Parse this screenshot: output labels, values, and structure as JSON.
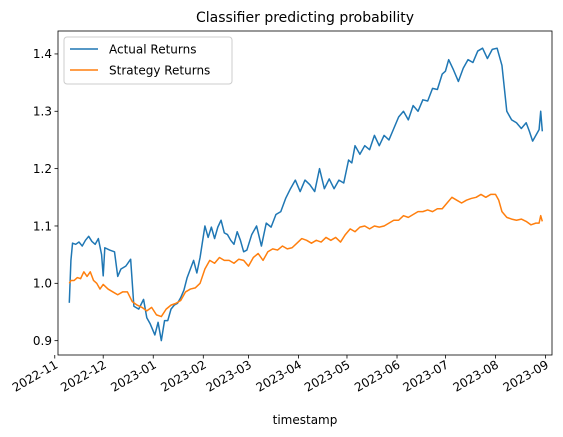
{
  "chart_data": {
    "type": "line",
    "title": "Classifier predicting probability",
    "xlabel": "timestamp",
    "ylabel": "",
    "xlim": [
      "2022-11-03",
      "2023-09-05"
    ],
    "ylim": [
      0.875,
      1.44
    ],
    "grid": false,
    "legend": "top-left",
    "xticks": [
      "2022-11",
      "2022-12",
      "2023-01",
      "2023-02",
      "2023-03",
      "2023-04",
      "2023-05",
      "2023-06",
      "2023-07",
      "2023-08",
      "2023-09"
    ],
    "yticks": [
      "0.9",
      "1.0",
      "1.1",
      "1.2",
      "1.3",
      "1.4"
    ],
    "series": [
      {
        "name": "Actual Returns",
        "color": "#1f77b4",
        "points": [
          [
            "2022-11-10",
            0.966
          ],
          [
            "2022-11-11",
            1.04
          ],
          [
            "2022-11-12",
            1.07
          ],
          [
            "2022-11-14",
            1.068
          ],
          [
            "2022-11-16",
            1.072
          ],
          [
            "2022-11-18",
            1.065
          ],
          [
            "2022-11-20",
            1.075
          ],
          [
            "2022-11-22",
            1.082
          ],
          [
            "2022-11-24",
            1.073
          ],
          [
            "2022-11-26",
            1.068
          ],
          [
            "2022-11-28",
            1.078
          ],
          [
            "2022-11-30",
            1.05
          ],
          [
            "2022-12-01",
            1.013
          ],
          [
            "2022-12-02",
            1.062
          ],
          [
            "2022-12-05",
            1.058
          ],
          [
            "2022-12-08",
            1.055
          ],
          [
            "2022-12-10",
            1.012
          ],
          [
            "2022-12-12",
            1.025
          ],
          [
            "2022-12-15",
            1.03
          ],
          [
            "2022-12-18",
            1.042
          ],
          [
            "2022-12-20",
            0.96
          ],
          [
            "2022-12-23",
            0.955
          ],
          [
            "2022-12-26",
            0.972
          ],
          [
            "2022-12-28",
            0.94
          ],
          [
            "2022-12-30",
            0.93
          ],
          [
            "2023-01-02",
            0.91
          ],
          [
            "2023-01-04",
            0.932
          ],
          [
            "2023-01-06",
            0.9
          ],
          [
            "2023-01-08",
            0.935
          ],
          [
            "2023-01-10",
            0.935
          ],
          [
            "2023-01-12",
            0.955
          ],
          [
            "2023-01-14",
            0.962
          ],
          [
            "2023-01-16",
            0.965
          ],
          [
            "2023-01-18",
            0.975
          ],
          [
            "2023-01-20",
            0.988
          ],
          [
            "2023-01-22",
            1.01
          ],
          [
            "2023-01-24",
            1.025
          ],
          [
            "2023-01-26",
            1.04
          ],
          [
            "2023-01-28",
            1.018
          ],
          [
            "2023-01-30",
            1.045
          ],
          [
            "2023-02-02",
            1.1
          ],
          [
            "2023-02-04",
            1.08
          ],
          [
            "2023-02-06",
            1.098
          ],
          [
            "2023-02-08",
            1.078
          ],
          [
            "2023-02-10",
            1.098
          ],
          [
            "2023-02-12",
            1.11
          ],
          [
            "2023-02-14",
            1.088
          ],
          [
            "2023-02-16",
            1.085
          ],
          [
            "2023-02-18",
            1.075
          ],
          [
            "2023-02-20",
            1.068
          ],
          [
            "2023-02-22",
            1.09
          ],
          [
            "2023-02-24",
            1.075
          ],
          [
            "2023-02-26",
            1.055
          ],
          [
            "2023-02-28",
            1.058
          ],
          [
            "2023-03-03",
            1.085
          ],
          [
            "2023-03-06",
            1.1
          ],
          [
            "2023-03-09",
            1.065
          ],
          [
            "2023-03-12",
            1.105
          ],
          [
            "2023-03-15",
            1.098
          ],
          [
            "2023-03-18",
            1.12
          ],
          [
            "2023-03-21",
            1.125
          ],
          [
            "2023-03-24",
            1.148
          ],
          [
            "2023-03-27",
            1.165
          ],
          [
            "2023-03-30",
            1.18
          ],
          [
            "2023-04-02",
            1.16
          ],
          [
            "2023-04-05",
            1.18
          ],
          [
            "2023-04-08",
            1.172
          ],
          [
            "2023-04-11",
            1.16
          ],
          [
            "2023-04-14",
            1.2
          ],
          [
            "2023-04-17",
            1.165
          ],
          [
            "2023-04-20",
            1.182
          ],
          [
            "2023-04-23",
            1.165
          ],
          [
            "2023-04-26",
            1.18
          ],
          [
            "2023-04-29",
            1.175
          ],
          [
            "2023-05-02",
            1.215
          ],
          [
            "2023-05-04",
            1.21
          ],
          [
            "2023-05-06",
            1.24
          ],
          [
            "2023-05-09",
            1.225
          ],
          [
            "2023-05-12",
            1.24
          ],
          [
            "2023-05-15",
            1.233
          ],
          [
            "2023-05-18",
            1.258
          ],
          [
            "2023-05-21",
            1.24
          ],
          [
            "2023-05-24",
            1.258
          ],
          [
            "2023-05-27",
            1.25
          ],
          [
            "2023-05-30",
            1.27
          ],
          [
            "2023-06-02",
            1.29
          ],
          [
            "2023-06-05",
            1.3
          ],
          [
            "2023-06-08",
            1.285
          ],
          [
            "2023-06-11",
            1.31
          ],
          [
            "2023-06-14",
            1.3
          ],
          [
            "2023-06-17",
            1.32
          ],
          [
            "2023-06-20",
            1.318
          ],
          [
            "2023-06-23",
            1.34
          ],
          [
            "2023-06-26",
            1.338
          ],
          [
            "2023-06-29",
            1.365
          ],
          [
            "2023-07-01",
            1.37
          ],
          [
            "2023-07-03",
            1.39
          ],
          [
            "2023-07-06",
            1.372
          ],
          [
            "2023-07-09",
            1.352
          ],
          [
            "2023-07-12",
            1.375
          ],
          [
            "2023-07-15",
            1.39
          ],
          [
            "2023-07-18",
            1.385
          ],
          [
            "2023-07-21",
            1.405
          ],
          [
            "2023-07-24",
            1.41
          ],
          [
            "2023-07-27",
            1.392
          ],
          [
            "2023-07-30",
            1.408
          ],
          [
            "2023-08-02",
            1.41
          ],
          [
            "2023-08-05",
            1.38
          ],
          [
            "2023-08-08",
            1.3
          ],
          [
            "2023-08-11",
            1.285
          ],
          [
            "2023-08-14",
            1.28
          ],
          [
            "2023-08-17",
            1.27
          ],
          [
            "2023-08-20",
            1.28
          ],
          [
            "2023-08-22",
            1.265
          ],
          [
            "2023-08-24",
            1.248
          ],
          [
            "2023-08-26",
            1.258
          ],
          [
            "2023-08-28",
            1.268
          ],
          [
            "2023-08-29",
            1.3
          ],
          [
            "2023-08-30",
            1.265
          ]
        ]
      },
      {
        "name": "Strategy Returns",
        "color": "#ff7f0e",
        "points": [
          [
            "2022-11-10",
            1.0
          ],
          [
            "2022-11-11",
            1.005
          ],
          [
            "2022-11-13",
            1.005
          ],
          [
            "2022-11-15",
            1.01
          ],
          [
            "2022-11-17",
            1.008
          ],
          [
            "2022-11-19",
            1.02
          ],
          [
            "2022-11-21",
            1.012
          ],
          [
            "2022-11-23",
            1.02
          ],
          [
            "2022-11-25",
            1.005
          ],
          [
            "2022-11-27",
            1.0
          ],
          [
            "2022-11-29",
            0.99
          ],
          [
            "2022-12-01",
            0.998
          ],
          [
            "2022-12-04",
            0.99
          ],
          [
            "2022-12-07",
            0.985
          ],
          [
            "2022-12-10",
            0.98
          ],
          [
            "2022-12-13",
            0.985
          ],
          [
            "2022-12-16",
            0.985
          ],
          [
            "2022-12-19",
            0.968
          ],
          [
            "2022-12-22",
            0.962
          ],
          [
            "2022-12-25",
            0.958
          ],
          [
            "2022-12-28",
            0.952
          ],
          [
            "2022-12-31",
            0.958
          ],
          [
            "2023-01-03",
            0.945
          ],
          [
            "2023-01-06",
            0.942
          ],
          [
            "2023-01-09",
            0.955
          ],
          [
            "2023-01-12",
            0.962
          ],
          [
            "2023-01-15",
            0.965
          ],
          [
            "2023-01-18",
            0.97
          ],
          [
            "2023-01-21",
            0.985
          ],
          [
            "2023-01-24",
            0.99
          ],
          [
            "2023-01-27",
            0.992
          ],
          [
            "2023-01-30",
            1.0
          ],
          [
            "2023-02-02",
            1.025
          ],
          [
            "2023-02-05",
            1.04
          ],
          [
            "2023-02-08",
            1.035
          ],
          [
            "2023-02-11",
            1.045
          ],
          [
            "2023-02-14",
            1.04
          ],
          [
            "2023-02-17",
            1.04
          ],
          [
            "2023-02-20",
            1.035
          ],
          [
            "2023-02-23",
            1.042
          ],
          [
            "2023-02-26",
            1.04
          ],
          [
            "2023-03-01",
            1.03
          ],
          [
            "2023-03-04",
            1.045
          ],
          [
            "2023-03-07",
            1.052
          ],
          [
            "2023-03-10",
            1.04
          ],
          [
            "2023-03-13",
            1.055
          ],
          [
            "2023-03-16",
            1.06
          ],
          [
            "2023-03-19",
            1.058
          ],
          [
            "2023-03-22",
            1.065
          ],
          [
            "2023-03-25",
            1.06
          ],
          [
            "2023-03-28",
            1.062
          ],
          [
            "2023-03-31",
            1.07
          ],
          [
            "2023-04-03",
            1.078
          ],
          [
            "2023-04-06",
            1.075
          ],
          [
            "2023-04-09",
            1.07
          ],
          [
            "2023-04-12",
            1.075
          ],
          [
            "2023-04-15",
            1.072
          ],
          [
            "2023-04-18",
            1.08
          ],
          [
            "2023-04-21",
            1.075
          ],
          [
            "2023-04-24",
            1.08
          ],
          [
            "2023-04-27",
            1.072
          ],
          [
            "2023-04-30",
            1.085
          ],
          [
            "2023-05-03",
            1.095
          ],
          [
            "2023-05-06",
            1.09
          ],
          [
            "2023-05-09",
            1.098
          ],
          [
            "2023-05-12",
            1.1
          ],
          [
            "2023-05-15",
            1.095
          ],
          [
            "2023-05-18",
            1.1
          ],
          [
            "2023-05-21",
            1.098
          ],
          [
            "2023-05-24",
            1.1
          ],
          [
            "2023-05-27",
            1.105
          ],
          [
            "2023-05-30",
            1.11
          ],
          [
            "2023-06-02",
            1.11
          ],
          [
            "2023-06-05",
            1.118
          ],
          [
            "2023-06-08",
            1.115
          ],
          [
            "2023-06-11",
            1.12
          ],
          [
            "2023-06-14",
            1.125
          ],
          [
            "2023-06-17",
            1.125
          ],
          [
            "2023-06-20",
            1.128
          ],
          [
            "2023-06-23",
            1.125
          ],
          [
            "2023-06-26",
            1.13
          ],
          [
            "2023-06-29",
            1.13
          ],
          [
            "2023-07-02",
            1.14
          ],
          [
            "2023-07-05",
            1.15
          ],
          [
            "2023-07-08",
            1.145
          ],
          [
            "2023-07-11",
            1.14
          ],
          [
            "2023-07-14",
            1.145
          ],
          [
            "2023-07-17",
            1.148
          ],
          [
            "2023-07-20",
            1.15
          ],
          [
            "2023-07-23",
            1.155
          ],
          [
            "2023-07-26",
            1.15
          ],
          [
            "2023-07-29",
            1.155
          ],
          [
            "2023-08-01",
            1.155
          ],
          [
            "2023-08-03",
            1.145
          ],
          [
            "2023-08-05",
            1.125
          ],
          [
            "2023-08-08",
            1.115
          ],
          [
            "2023-08-11",
            1.112
          ],
          [
            "2023-08-14",
            1.11
          ],
          [
            "2023-08-17",
            1.112
          ],
          [
            "2023-08-20",
            1.108
          ],
          [
            "2023-08-23",
            1.102
          ],
          [
            "2023-08-26",
            1.105
          ],
          [
            "2023-08-28",
            1.105
          ],
          [
            "2023-08-29",
            1.118
          ],
          [
            "2023-08-30",
            1.108
          ]
        ]
      }
    ]
  }
}
